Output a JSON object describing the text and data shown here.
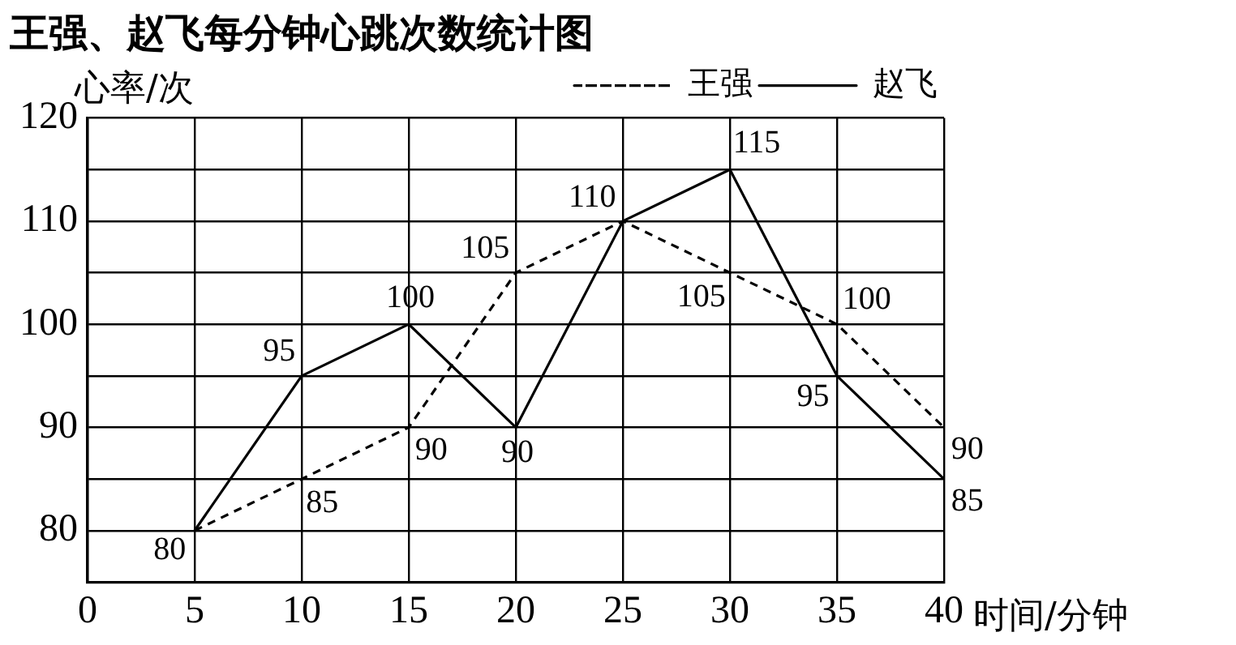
{
  "chart_data": {
    "type": "line",
    "title": "王强、赵飞每分钟心跳次数统计图",
    "xlabel": "时间/分钟",
    "ylabel": "心率/次",
    "x": [
      5,
      10,
      15,
      20,
      25,
      30,
      35,
      40
    ],
    "series": [
      {
        "name": "王强",
        "color": "#000000",
        "line_style": "dashed",
        "values": [
          80,
          85,
          90,
          105,
          110,
          105,
          100,
          90
        ],
        "value_labels": [
          "80",
          "85",
          "90",
          "105",
          null,
          "105",
          "100",
          "90"
        ]
      },
      {
        "name": "赵飞",
        "color": "#000000",
        "line_style": "solid",
        "values": [
          80,
          95,
          100,
          90,
          110,
          115,
          95,
          85
        ],
        "value_labels": [
          null,
          "95",
          "100",
          "90",
          "110",
          "115",
          "95",
          "85"
        ]
      }
    ],
    "xlim": [
      0,
      40
    ],
    "xticks": [
      0,
      5,
      10,
      15,
      20,
      25,
      30,
      35,
      40
    ],
    "ylim": [
      75,
      120
    ],
    "yticks": [
      80,
      {
        "value": 85,
        "label": null
      },
      90,
      {
        "value": 95,
        "label": null
      },
      100,
      {
        "value": 105,
        "label": null
      },
      110,
      {
        "value": 115,
        "label": null
      },
      120
    ],
    "grid": true,
    "legend": "top right",
    "marker": "none"
  }
}
